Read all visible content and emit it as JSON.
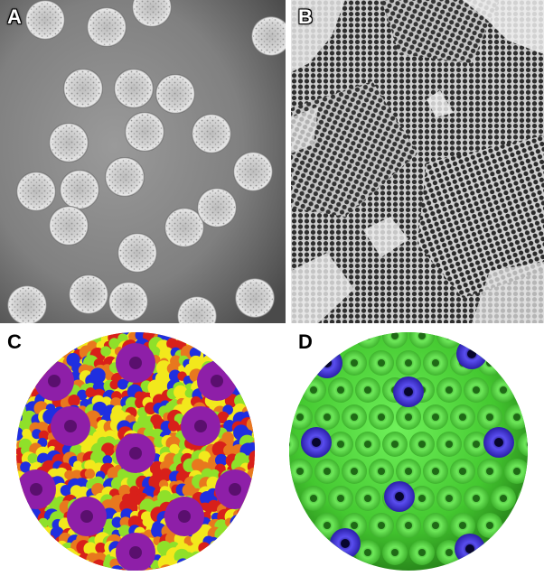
{
  "figure": {
    "panels": [
      {
        "label": "A"
      },
      {
        "label": "B"
      },
      {
        "label": "C"
      },
      {
        "label": "D"
      }
    ]
  },
  "colors": {
    "em_background": "#8a8a8a",
    "em_particle": "#d9d9d9",
    "lattice_background": "#6a6a6a",
    "capsid_purple": "#8e1fa8",
    "capsid_blue": "#1f2fe0",
    "capsid_red": "#d8201a",
    "capsid_orange": "#e8781e",
    "capsid_yellow": "#f2e81c",
    "capsid_green": "#8fe02a",
    "surface_green": "#4fdc3a",
    "surface_blue": "#3a2fc8"
  }
}
